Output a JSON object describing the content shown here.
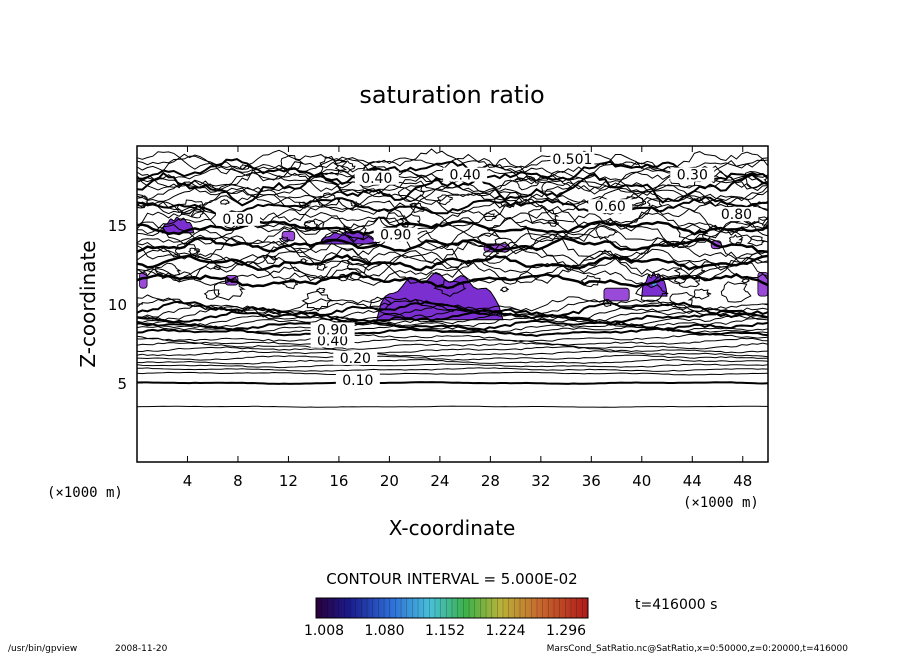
{
  "chart_data": {
    "type": "contour",
    "title": "saturation ratio",
    "xlabel": "X-coordinate",
    "ylabel": "Z-coordinate",
    "x_unit_left": "(×1000 m)",
    "x_unit_right": "(×1000 m)",
    "xlim": [
      0,
      50
    ],
    "ylim": [
      0,
      20
    ],
    "x_ticks": [
      4,
      8,
      12,
      16,
      20,
      24,
      28,
      32,
      36,
      40,
      44,
      48
    ],
    "y_ticks": [
      5,
      10,
      15
    ],
    "contour_interval_text": "CONTOUR INTERVAL = 5.000E-02",
    "time_text": "t=416000 s",
    "colorbar_ticks": [
      "1.008",
      "1.080",
      "1.152",
      "1.224",
      "1.296"
    ],
    "colorbar_range": [
      1.008,
      1.296
    ],
    "contour_labels": [
      {
        "text": "0.10",
        "x": 17.5,
        "z": 5.0
      },
      {
        "text": "0.20",
        "x": 17.3,
        "z": 6.4
      },
      {
        "text": "0.40",
        "x": 15.5,
        "z": 7.5
      },
      {
        "text": "0.501",
        "x": 34.5,
        "z": 19.0
      },
      {
        "text": "0.40",
        "x": 19.0,
        "z": 17.8
      },
      {
        "text": "0.40",
        "x": 26.0,
        "z": 18.0
      },
      {
        "text": "0.30",
        "x": 44.0,
        "z": 18.0
      },
      {
        "text": "0.60",
        "x": 37.5,
        "z": 16.0
      },
      {
        "text": "0.80",
        "x": 47.5,
        "z": 15.5
      },
      {
        "text": "0.90",
        "x": 20.5,
        "z": 14.2
      },
      {
        "text": "0.80",
        "x": 8.0,
        "z": 15.2
      },
      {
        "text": "0.90",
        "x": 15.5,
        "z": 8.2
      }
    ],
    "supersaturated_regions": [
      {
        "x_range": [
          19,
          29
        ],
        "z_range": [
          9,
          12
        ],
        "max": 1.15
      },
      {
        "x_range": [
          14.5,
          19
        ],
        "z_range": [
          13.8,
          14.6
        ],
        "max": 1.06
      },
      {
        "x_range": [
          2,
          4.5
        ],
        "z_range": [
          14.5,
          15.5
        ],
        "max": 1.04
      },
      {
        "x_range": [
          40,
          42
        ],
        "z_range": [
          10.5,
          12
        ],
        "max": 1.3
      }
    ]
  },
  "footer": {
    "program": "/usr/bin/gpview",
    "date": "2008-11-20",
    "source": "MarsCond_SatRatio.nc@SatRatio,x=0:50000,z=0:20000,t=416000"
  },
  "colors": {
    "fill_main": "#7b2fd0",
    "fill_dark": "#3b1a9c",
    "fill_light": "#9a4ad8",
    "line": "#000000"
  }
}
